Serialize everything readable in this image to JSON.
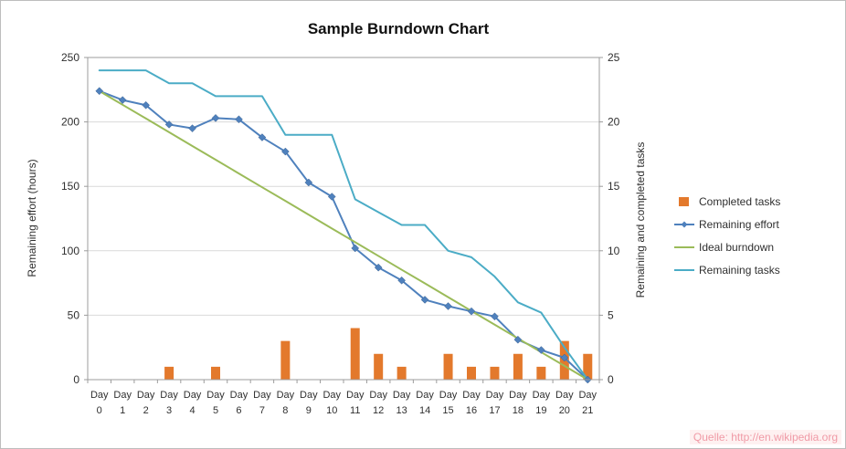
{
  "watermark": "Quelle: http://en.wikipedia.org",
  "chart_data": {
    "type": "combo",
    "title": "Sample Burndown Chart",
    "ylabel_left": "Remaining effort (hours)",
    "ylabel_right": "Remaining and completed tasks",
    "y_left": {
      "min": 0,
      "max": 250,
      "step": 50
    },
    "y_right": {
      "min": 0,
      "max": 25,
      "step": 5
    },
    "grid": "horizontal",
    "legend_position": "right",
    "x_categories": [
      "Day 0",
      "Day 1",
      "Day 2",
      "Day 3",
      "Day 4",
      "Day 5",
      "Day 6",
      "Day 7",
      "Day 8",
      "Day 9",
      "Day 10",
      "Day 11",
      "Day 12",
      "Day 13",
      "Day 14",
      "Day 15",
      "Day 16",
      "Day 17",
      "Day 18",
      "Day 19",
      "Day 20",
      "Day 21"
    ],
    "series": [
      {
        "name": "Completed tasks",
        "type": "bar",
        "axis": "right",
        "color": "#E3792C",
        "values": [
          0,
          0,
          0,
          1,
          0,
          1,
          0,
          0,
          3,
          0,
          0,
          4,
          2,
          1,
          0,
          2,
          1,
          1,
          2,
          1,
          3,
          2
        ]
      },
      {
        "name": "Remaining effort",
        "type": "line",
        "axis": "left",
        "color": "#4F81BD",
        "marker": "diamond",
        "values": [
          224,
          217,
          213,
          198,
          195,
          203,
          202,
          188,
          177,
          153,
          142,
          102,
          87,
          77,
          62,
          57,
          53,
          49,
          31,
          23,
          17,
          0
        ]
      },
      {
        "name": "Ideal burndown",
        "type": "line",
        "axis": "left",
        "color": "#9BBB59",
        "values": [
          224,
          213.3,
          202.7,
          192,
          181.3,
          170.7,
          160,
          149.3,
          138.7,
          128,
          117.3,
          106.7,
          96,
          85.3,
          74.7,
          64,
          53.3,
          42.7,
          32,
          21.3,
          10.7,
          0
        ]
      },
      {
        "name": "Remaining tasks",
        "type": "line",
        "axis": "right",
        "color": "#4BACC6",
        "values": [
          24,
          24,
          24,
          23,
          23,
          22,
          22,
          22,
          19,
          19,
          19,
          14,
          13,
          12,
          12,
          10,
          9.5,
          8,
          6,
          5.2,
          2.5,
          0
        ]
      }
    ]
  }
}
